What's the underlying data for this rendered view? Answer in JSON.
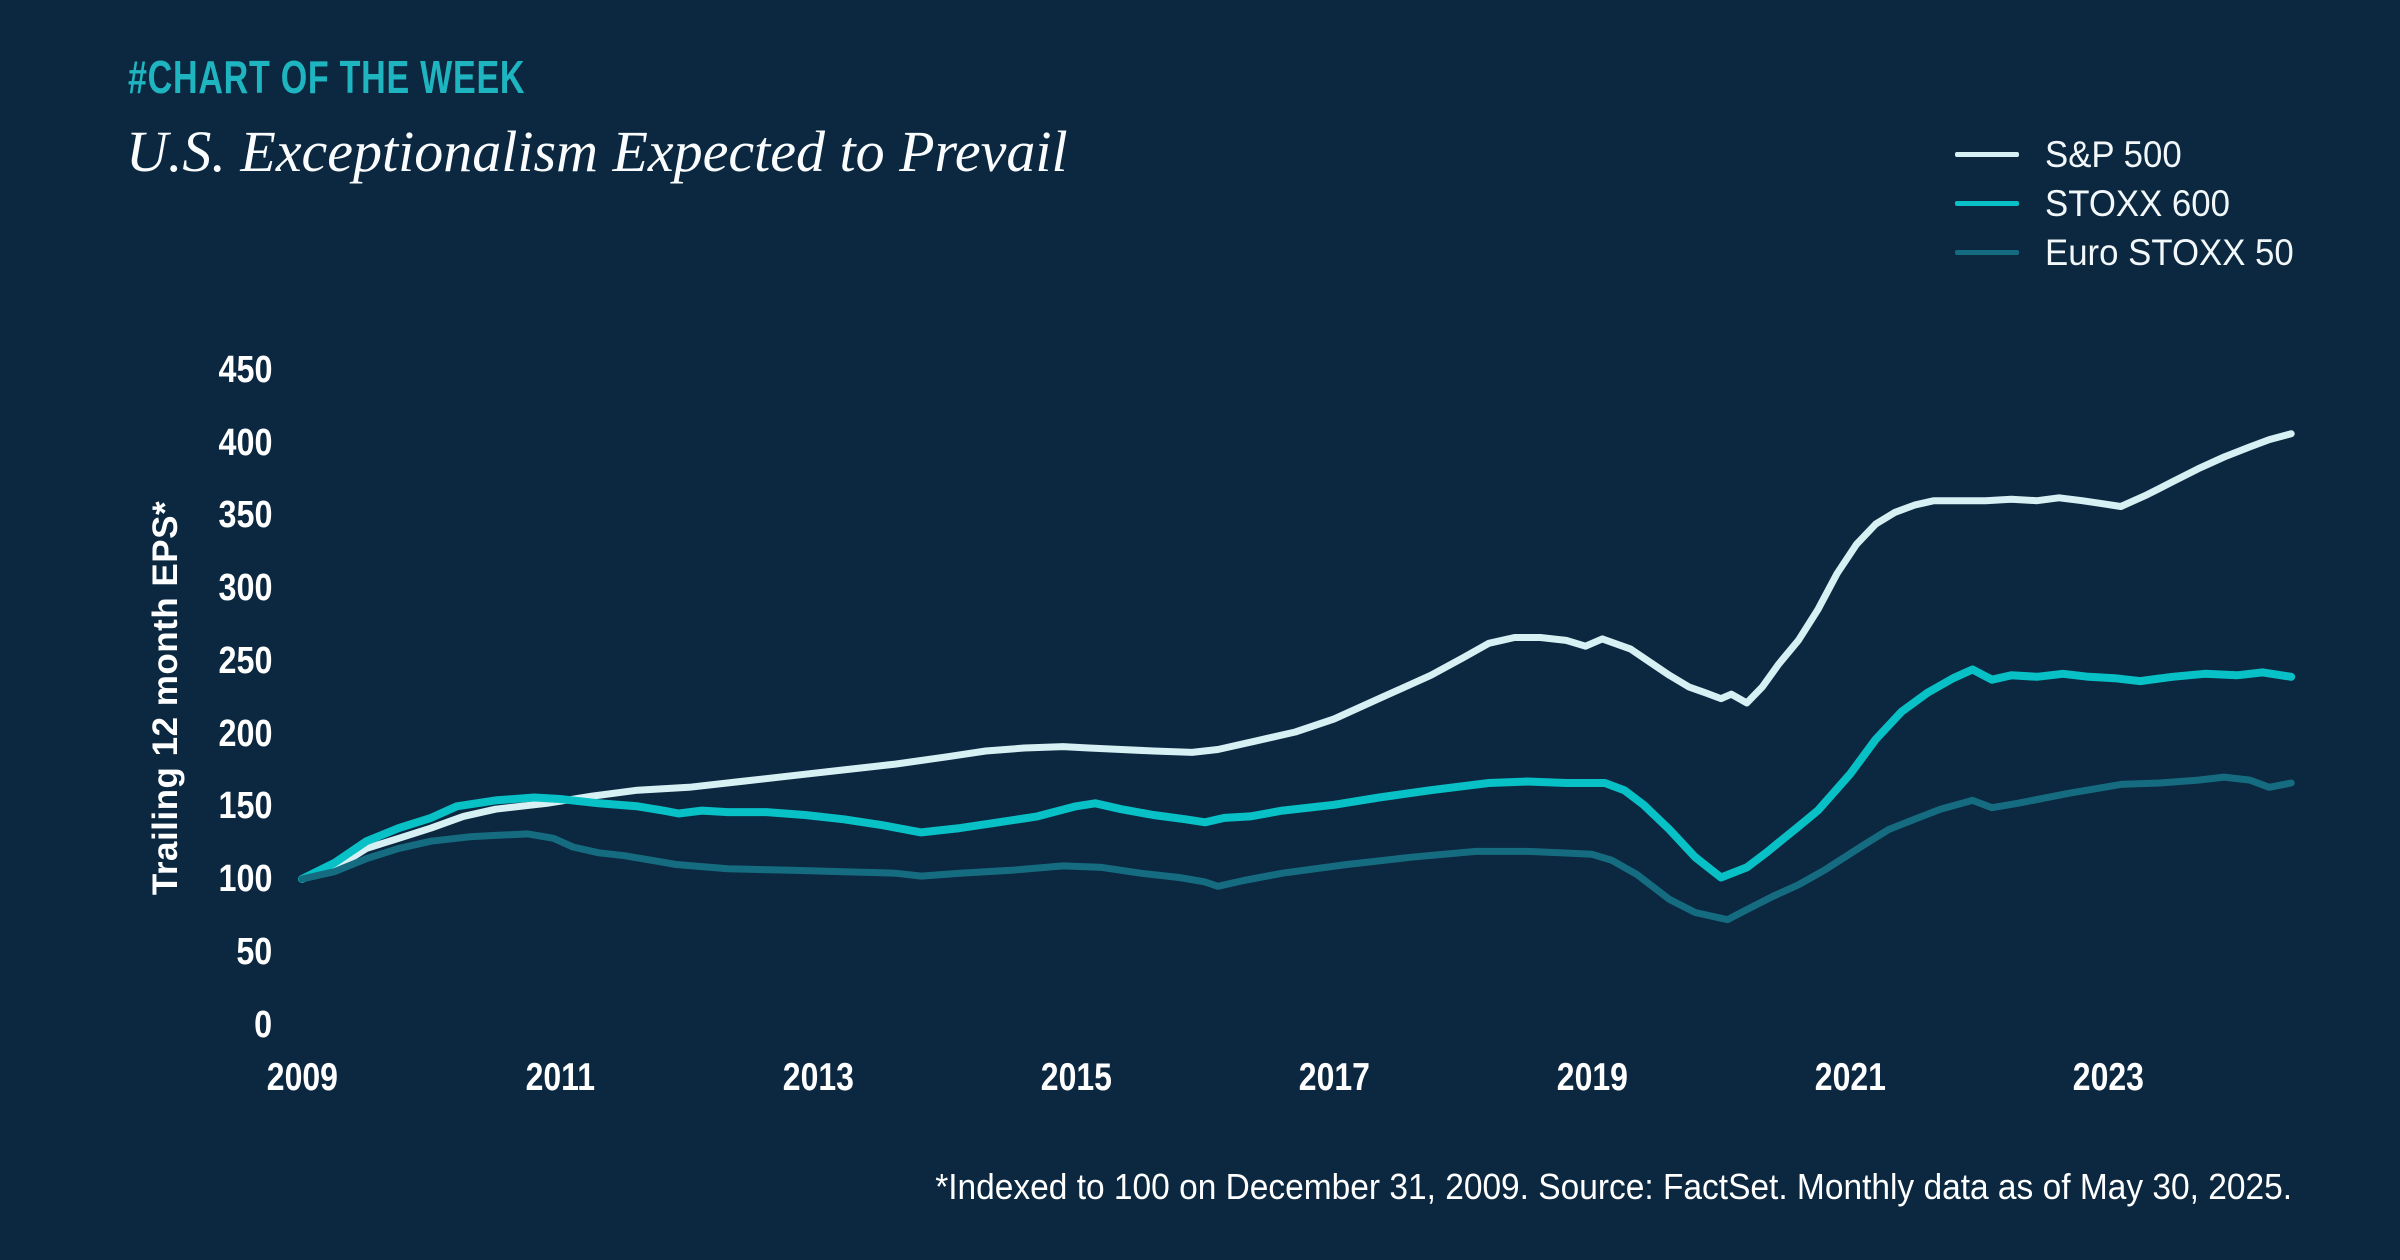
{
  "header": {
    "kicker": "#CHART OF THE WEEK",
    "title": "U.S. Exceptionalism Expected to Prevail"
  },
  "legend": [
    {
      "label": "S&P 500",
      "color": "#D7F0F4"
    },
    {
      "label": "STOXX 600",
      "color": "#08C1C6"
    },
    {
      "label": "Euro STOXX 50",
      "color": "#156C80"
    }
  ],
  "footnote": "*Indexed to 100 on December 31, 2009. Source: FactSet. Monthly data as of May 30, 2025.",
  "colors": {
    "background": "#0B2840",
    "kicker_accent": "#1FB5C0",
    "text": "#FFFFFF",
    "sp500_line": "#D7F0F4",
    "stoxx600_line": "#08C1C6",
    "eurostoxx50_line": "#156C80"
  },
  "chart_data": {
    "type": "line",
    "title": "U.S. Exceptionalism Expected to Prevail",
    "xlabel": "",
    "ylabel": "Trailing 12 month EPS*",
    "y_ticks": [
      0,
      50,
      100,
      150,
      200,
      250,
      300,
      350,
      400,
      450
    ],
    "ylim": [
      0,
      475
    ],
    "x_ticks": [
      2009,
      2011,
      2013,
      2015,
      2017,
      2019,
      2021,
      2023
    ],
    "x_note": "t = years after Dec 31, 2009 (tick '2009'); monthly data through May 30, 2025 (t = 15.42)",
    "xlim_t": [
      0,
      15.42
    ],
    "grid": false,
    "legend_position": "top-right",
    "index_base": 100,
    "series": [
      {
        "name": "S&P 500",
        "color": "#D7F0F4",
        "points": [
          [
            0,
            100
          ],
          [
            0.25,
            107
          ],
          [
            0.5,
            121
          ],
          [
            0.75,
            128
          ],
          [
            1,
            135
          ],
          [
            1.25,
            143
          ],
          [
            1.5,
            148
          ],
          [
            1.9,
            152
          ],
          [
            2.25,
            157
          ],
          [
            2.6,
            161
          ],
          [
            3,
            163
          ],
          [
            3.4,
            167
          ],
          [
            3.8,
            171
          ],
          [
            4.2,
            175
          ],
          [
            4.6,
            179
          ],
          [
            5,
            184
          ],
          [
            5.3,
            188
          ],
          [
            5.6,
            190
          ],
          [
            5.9,
            191
          ],
          [
            6.1,
            190
          ],
          [
            6.35,
            189
          ],
          [
            6.6,
            188
          ],
          [
            6.9,
            187
          ],
          [
            7.1,
            189
          ],
          [
            7.4,
            195
          ],
          [
            7.7,
            201
          ],
          [
            8,
            210
          ],
          [
            8.35,
            224
          ],
          [
            8.75,
            240
          ],
          [
            9,
            252
          ],
          [
            9.2,
            262
          ],
          [
            9.4,
            266
          ],
          [
            9.6,
            266
          ],
          [
            9.8,
            264
          ],
          [
            9.95,
            260
          ],
          [
            10.08,
            265
          ],
          [
            10.3,
            258
          ],
          [
            10.45,
            249
          ],
          [
            10.6,
            240
          ],
          [
            10.75,
            232
          ],
          [
            10.88,
            228
          ],
          [
            11,
            224
          ],
          [
            11.08,
            227
          ],
          [
            11.2,
            221
          ],
          [
            11.32,
            232
          ],
          [
            11.45,
            248
          ],
          [
            11.6,
            264
          ],
          [
            11.75,
            285
          ],
          [
            11.9,
            310
          ],
          [
            12.05,
            330
          ],
          [
            12.2,
            344
          ],
          [
            12.35,
            352
          ],
          [
            12.5,
            357
          ],
          [
            12.65,
            360
          ],
          [
            12.85,
            360
          ],
          [
            13.05,
            360
          ],
          [
            13.25,
            361
          ],
          [
            13.45,
            360
          ],
          [
            13.62,
            362
          ],
          [
            13.8,
            360
          ],
          [
            13.95,
            358
          ],
          [
            14.1,
            356
          ],
          [
            14.3,
            364
          ],
          [
            14.5,
            373
          ],
          [
            14.7,
            382
          ],
          [
            14.9,
            390
          ],
          [
            15.1,
            397
          ],
          [
            15.25,
            402
          ],
          [
            15.42,
            406
          ]
        ]
      },
      {
        "name": "STOXX 600",
        "color": "#08C1C6",
        "points": [
          [
            0,
            100
          ],
          [
            0.25,
            111
          ],
          [
            0.5,
            126
          ],
          [
            0.75,
            135
          ],
          [
            1,
            142
          ],
          [
            1.2,
            150
          ],
          [
            1.5,
            154
          ],
          [
            1.8,
            156
          ],
          [
            2,
            155
          ],
          [
            2.3,
            152
          ],
          [
            2.6,
            150
          ],
          [
            2.8,
            147
          ],
          [
            2.92,
            145
          ],
          [
            3.1,
            147
          ],
          [
            3.3,
            146
          ],
          [
            3.6,
            146
          ],
          [
            3.9,
            144
          ],
          [
            4.2,
            141
          ],
          [
            4.5,
            137
          ],
          [
            4.8,
            132
          ],
          [
            5.1,
            135
          ],
          [
            5.4,
            139
          ],
          [
            5.7,
            143
          ],
          [
            6,
            150
          ],
          [
            6.15,
            152
          ],
          [
            6.35,
            148
          ],
          [
            6.6,
            144
          ],
          [
            6.85,
            141
          ],
          [
            7,
            139
          ],
          [
            7.15,
            142
          ],
          [
            7.35,
            143
          ],
          [
            7.6,
            147
          ],
          [
            8,
            151
          ],
          [
            8.35,
            156
          ],
          [
            8.75,
            161
          ],
          [
            9.2,
            166
          ],
          [
            9.5,
            167
          ],
          [
            9.8,
            166
          ],
          [
            10.1,
            166
          ],
          [
            10.25,
            161
          ],
          [
            10.4,
            151
          ],
          [
            10.6,
            134
          ],
          [
            10.8,
            115
          ],
          [
            11,
            101
          ],
          [
            11.2,
            108
          ],
          [
            11.35,
            118
          ],
          [
            11.6,
            136
          ],
          [
            11.75,
            147
          ],
          [
            12,
            172
          ],
          [
            12.2,
            196
          ],
          [
            12.4,
            215
          ],
          [
            12.6,
            228
          ],
          [
            12.8,
            238
          ],
          [
            12.95,
            244
          ],
          [
            13.1,
            237
          ],
          [
            13.25,
            240
          ],
          [
            13.45,
            239
          ],
          [
            13.65,
            241
          ],
          [
            13.85,
            239
          ],
          [
            14.05,
            238
          ],
          [
            14.25,
            236
          ],
          [
            14.5,
            239
          ],
          [
            14.75,
            241
          ],
          [
            15,
            240
          ],
          [
            15.2,
            242
          ],
          [
            15.42,
            239
          ]
        ]
      },
      {
        "name": "Euro STOXX 50",
        "color": "#156C80",
        "points": [
          [
            0,
            100
          ],
          [
            0.25,
            105
          ],
          [
            0.5,
            114
          ],
          [
            0.75,
            121
          ],
          [
            1,
            126
          ],
          [
            1.3,
            129
          ],
          [
            1.5,
            130
          ],
          [
            1.75,
            131
          ],
          [
            1.95,
            128
          ],
          [
            2.1,
            122
          ],
          [
            2.3,
            118
          ],
          [
            2.5,
            116
          ],
          [
            2.7,
            113
          ],
          [
            2.9,
            110
          ],
          [
            3.3,
            107
          ],
          [
            3.8,
            106
          ],
          [
            4.2,
            105
          ],
          [
            4.6,
            104
          ],
          [
            4.8,
            102
          ],
          [
            5.1,
            104
          ],
          [
            5.5,
            106
          ],
          [
            5.9,
            109
          ],
          [
            6.2,
            108
          ],
          [
            6.5,
            104
          ],
          [
            6.8,
            101
          ],
          [
            7,
            98
          ],
          [
            7.1,
            95
          ],
          [
            7.3,
            99
          ],
          [
            7.6,
            104
          ],
          [
            8.1,
            110
          ],
          [
            8.6,
            115
          ],
          [
            9.1,
            119
          ],
          [
            9.5,
            119
          ],
          [
            9.75,
            118
          ],
          [
            10,
            117
          ],
          [
            10.15,
            113
          ],
          [
            10.35,
            103
          ],
          [
            10.6,
            86
          ],
          [
            10.8,
            77
          ],
          [
            11.05,
            72
          ],
          [
            11.2,
            79
          ],
          [
            11.4,
            88
          ],
          [
            11.6,
            96
          ],
          [
            11.8,
            106
          ],
          [
            12.1,
            123
          ],
          [
            12.3,
            134
          ],
          [
            12.5,
            141
          ],
          [
            12.7,
            148
          ],
          [
            12.95,
            154
          ],
          [
            13.1,
            149
          ],
          [
            13.3,
            152
          ],
          [
            13.7,
            159
          ],
          [
            14.1,
            165
          ],
          [
            14.4,
            166
          ],
          [
            14.7,
            168
          ],
          [
            14.9,
            170
          ],
          [
            15.1,
            168
          ],
          [
            15.25,
            163
          ],
          [
            15.42,
            166
          ]
        ]
      }
    ]
  }
}
